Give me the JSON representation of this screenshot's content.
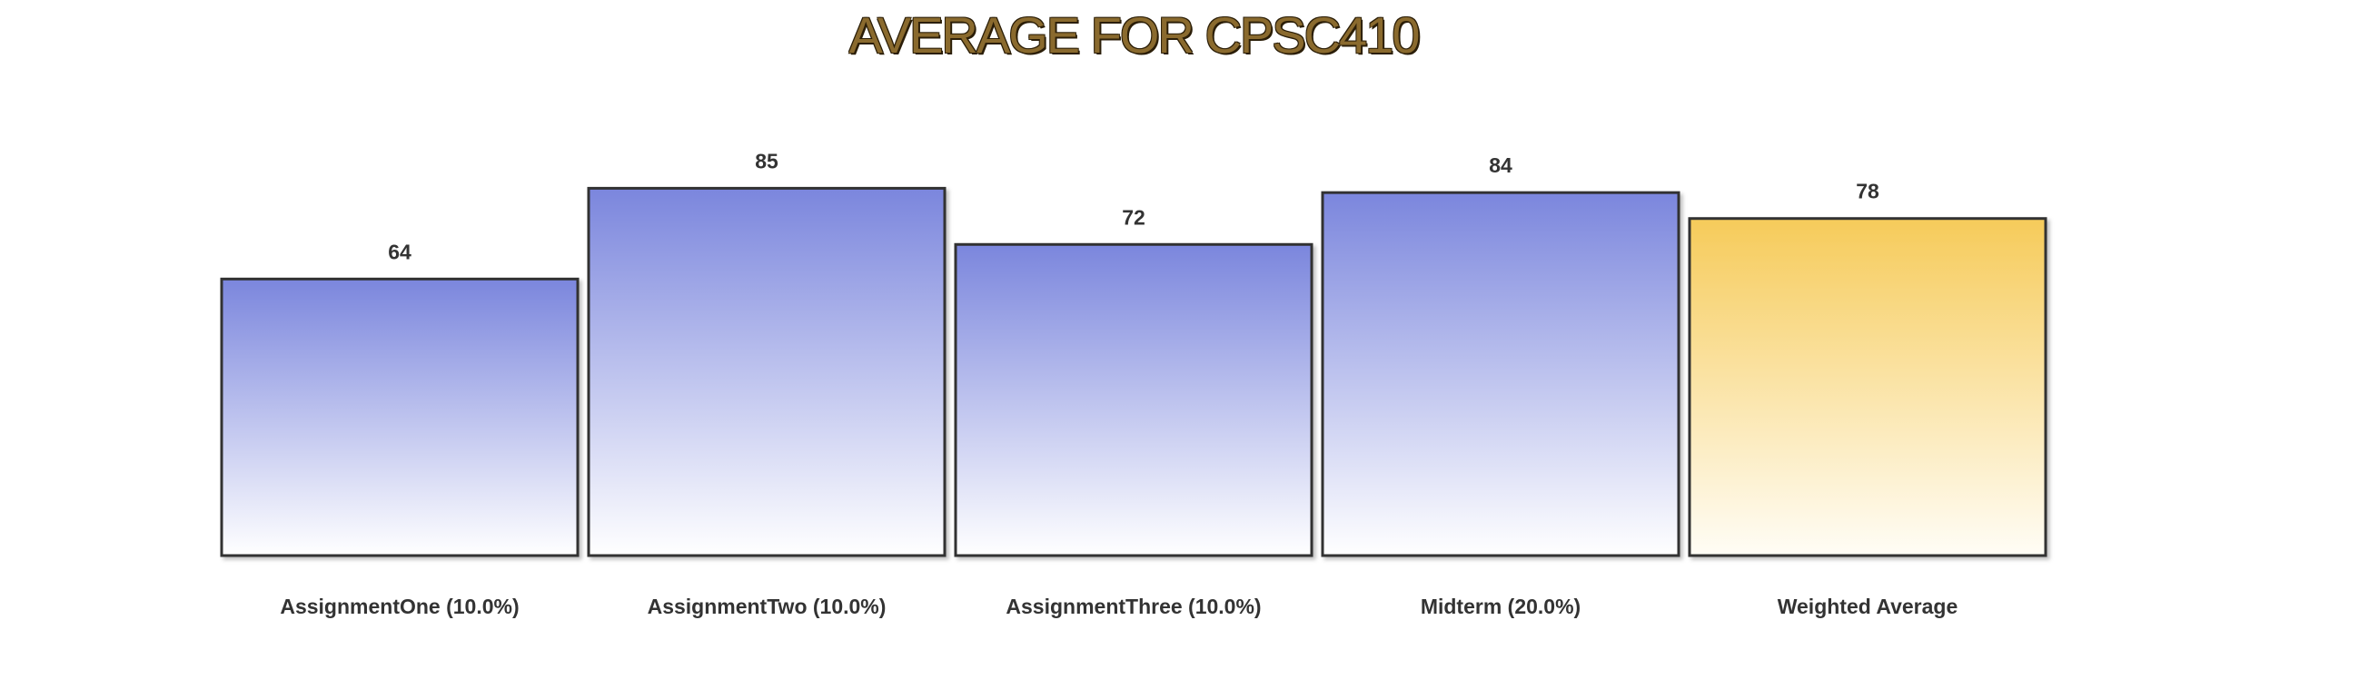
{
  "chart_data": {
    "type": "bar",
    "title": "AVERAGE FOR CPSC410",
    "categories": [
      "AssignmentOne (10.0%)",
      "AssignmentTwo (10.0%)",
      "AssignmentThree (10.0%)",
      "Midterm (20.0%)",
      "Weighted Average"
    ],
    "values": [
      64,
      85,
      72,
      84,
      78
    ],
    "ylim": [
      0,
      100
    ],
    "grid": false,
    "legend": "none",
    "colors": {
      "bar_top": "#7b86dd",
      "bar_bottom": "#ffffff",
      "highlight_top": "#f6cb5a",
      "highlight_bottom": "#fffdf6",
      "stroke": "#333333",
      "title": "#8a6a2e"
    },
    "highlight_index": 4
  }
}
